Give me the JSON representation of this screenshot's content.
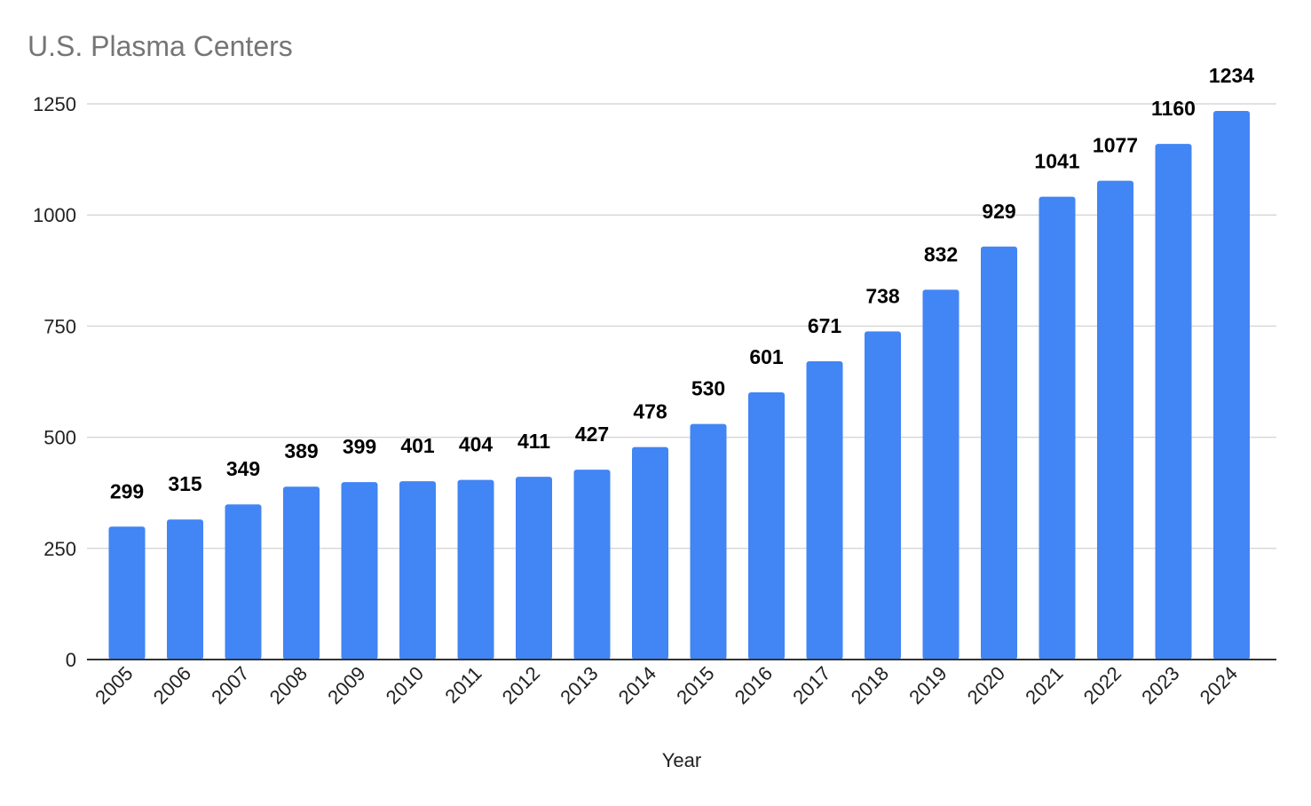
{
  "chart_data": {
    "type": "bar",
    "title": "U.S. Plasma Centers",
    "xlabel": "Year",
    "ylabel": "",
    "categories": [
      "2005",
      "2006",
      "2007",
      "2008",
      "2009",
      "2010",
      "2011",
      "2012",
      "2013",
      "2014",
      "2015",
      "2016",
      "2017",
      "2018",
      "2019",
      "2020",
      "2021",
      "2022",
      "2023",
      "2024"
    ],
    "values": [
      299,
      315,
      349,
      389,
      399,
      401,
      404,
      411,
      427,
      478,
      530,
      601,
      671,
      738,
      832,
      929,
      1041,
      1077,
      1160,
      1234
    ],
    "ylim": [
      0,
      1250
    ],
    "yticks": [
      0,
      250,
      500,
      750,
      1000,
      1250
    ],
    "grid": true,
    "legend": "none",
    "colors": {
      "bar": "#4285f4",
      "grid": "#d9d9d9",
      "axis": "#333333"
    }
  }
}
